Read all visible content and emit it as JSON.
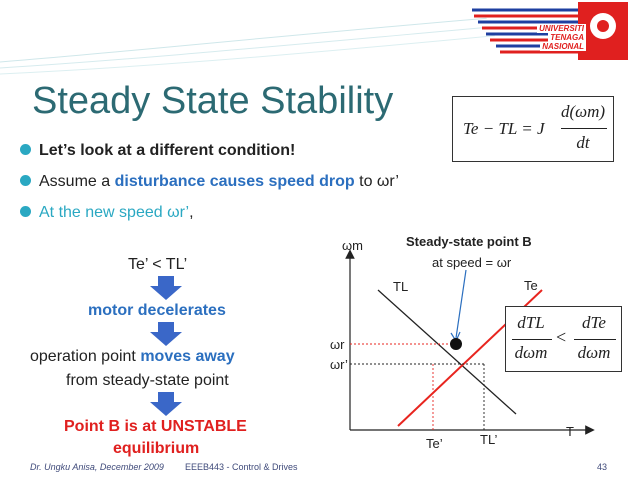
{
  "slide": {
    "title": "Steady State Stability",
    "bullets": [
      "Let’s look at a different condition!",
      {
        "pre": "Assume a ",
        "highlight": "disturbance causes speed drop",
        "post": " to ωr’"
      },
      {
        "highlight": "At the new speed ωr’",
        "post": ","
      }
    ],
    "formula": {
      "lhs": "Te − TL = J",
      "num": "d(ωm)",
      "den": "dt"
    },
    "flow": {
      "step1": "Te’ < TL’",
      "step2": "motor decelerates",
      "step3_pre": "operation point ",
      "step3_highlight": "moves away",
      "step3_line2": "from steady-state point",
      "step4_line1": "Point B is at UNSTABLE",
      "step4_line2": "equilibrium"
    },
    "graph": {
      "y_axis_label": "ωm",
      "x_axis_label": "T",
      "annotation_title": "Steady-state point B",
      "annotation_sub": "at speed = ωr",
      "curve_labels": [
        "TL",
        "Te"
      ],
      "speed_labels": [
        "ωr",
        "ωr’"
      ],
      "torque_labels": [
        "Te’",
        "TL’"
      ]
    },
    "inequality": {
      "left_num": "dTL",
      "left_den": "dωm",
      "op": "<",
      "right_num": "dTe",
      "right_den": "dωm"
    },
    "logo_text": [
      "UNIVERSITI",
      "TENAGA",
      "NASIONAL"
    ],
    "footer": {
      "author": "Dr. Ungku Anisa, December 2009",
      "course": "EEEB443 - Control & Drives",
      "page": "43"
    },
    "colors": {
      "title": "#2c6a73",
      "bullet": "#2aa8c2",
      "highlight": "#2b6fbf",
      "unstable": "#e0201f",
      "arrow": "#3a67c8",
      "te_line": "#e8251f"
    }
  }
}
